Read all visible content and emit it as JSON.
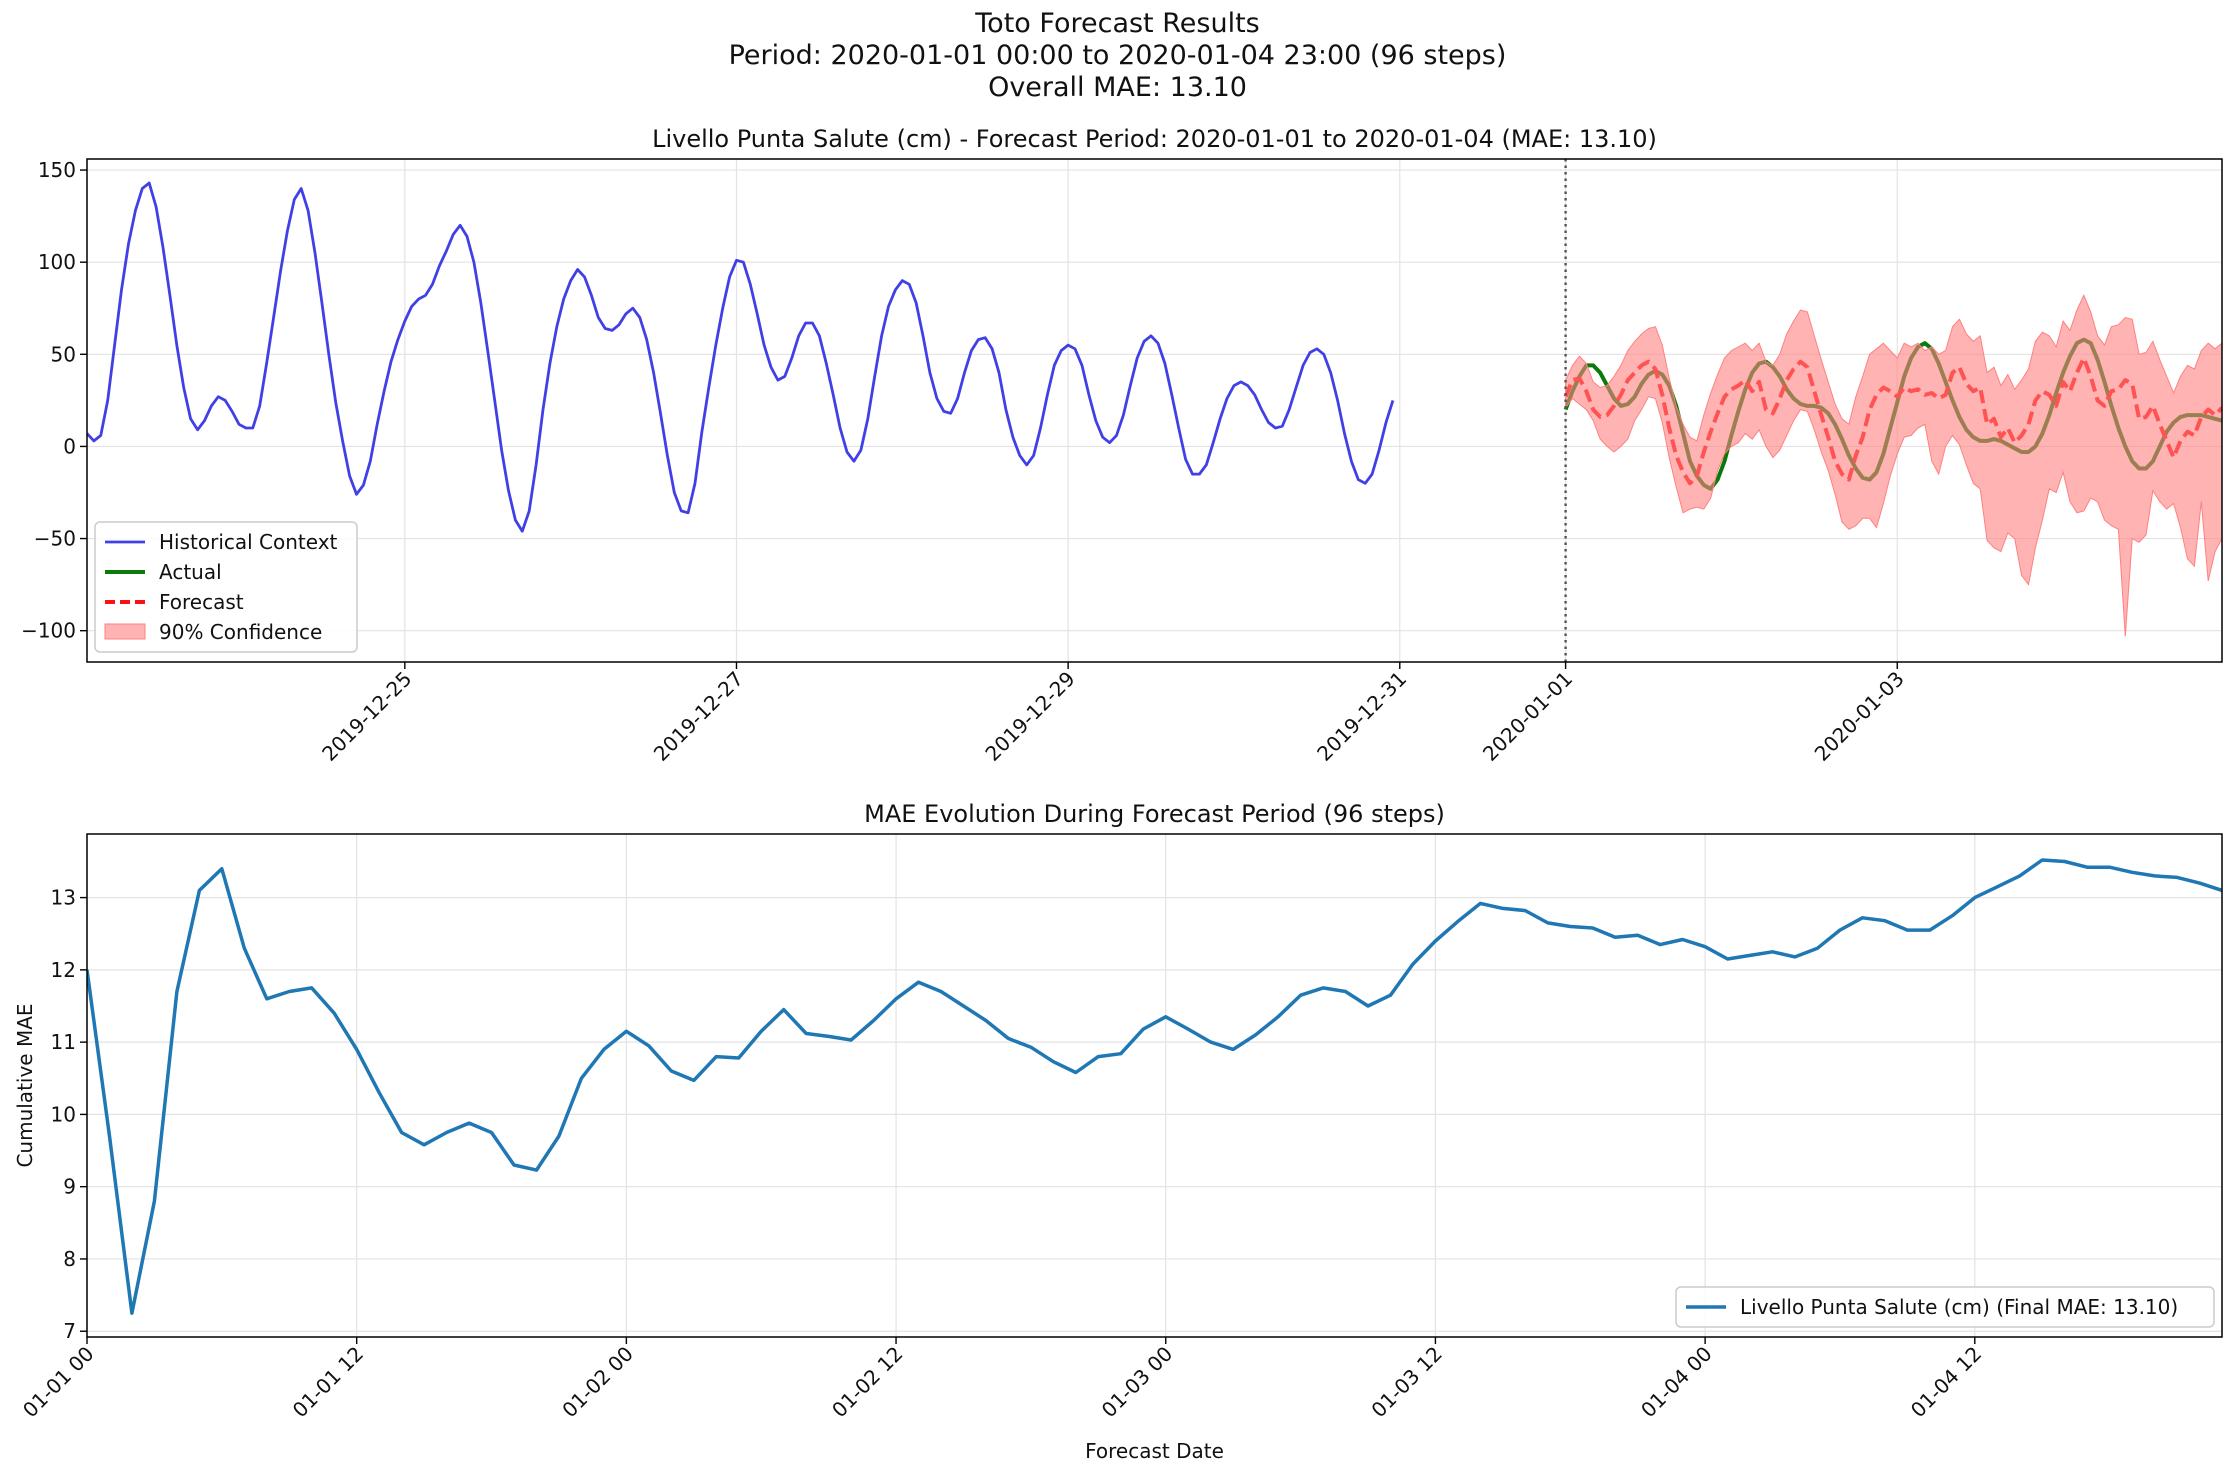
{
  "figure": {
    "title_lines": [
      "Toto Forecast Results",
      "Period: 2020-01-01 00:00 to 2020-01-04 23:00 (96 steps)",
      "Overall MAE: 13.10"
    ]
  },
  "colors": {
    "historical": "#4040e6",
    "actual": "#0a7a0a",
    "forecast": "#ff1010",
    "confidence": "#ff8080",
    "mae_line": "#1f77b4",
    "grid": "#e3e3e3"
  },
  "chart_data": [
    {
      "type": "line",
      "title": "Livello Punta Salute (cm) - Forecast Period: 2020-01-01 to 2020-01-04 (MAE: 13.10)",
      "xlabel": "",
      "ylabel": "",
      "xlim": [
        "2019-12-23 02:00",
        "2020-01-04 23:00"
      ],
      "ylim": [
        -117,
        156
      ],
      "yticks": [
        "150",
        "100",
        "50",
        "0",
        "−50",
        "−100"
      ],
      "xticks": [
        "2019-12-25",
        "2019-12-27",
        "2019-12-29",
        "2019-12-31",
        "2020-01-01",
        "2020-01-03"
      ],
      "forecast_start": "2020-01-01 00:00",
      "grid": true,
      "legend_position": "lower-left",
      "legend": [
        "Historical Context",
        "Actual",
        "Forecast",
        "90% Confidence"
      ],
      "series": [
        {
          "name": "Historical Context",
          "x_start": "2019-12-23 02:00",
          "x_step_hours": 1,
          "values": [
            7,
            3,
            6,
            25,
            55,
            85,
            110,
            128,
            140,
            143,
            130,
            108,
            82,
            55,
            32,
            15,
            9,
            14,
            22,
            27,
            25,
            19,
            12,
            10,
            10,
            22,
            45,
            70,
            95,
            117,
            134,
            140,
            128,
            105,
            78,
            50,
            24,
            3,
            -16,
            -26,
            -21,
            -8,
            12,
            30,
            46,
            58,
            68,
            76,
            80,
            82,
            88,
            98,
            106,
            115,
            120,
            114,
            100,
            78,
            52,
            25,
            -2,
            -24,
            -40,
            -46,
            -35,
            -10,
            20,
            45,
            65,
            80,
            90,
            96,
            92,
            82,
            70,
            64,
            63,
            66,
            72,
            75,
            70,
            58,
            40,
            18,
            -5,
            -25,
            -35,
            -36,
            -20,
            8,
            32,
            55,
            75,
            92,
            101,
            100,
            88,
            72,
            55,
            43,
            36,
            38,
            48,
            60,
            67,
            67,
            60,
            45,
            28,
            10,
            -3,
            -8,
            -2,
            15,
            38,
            60,
            76,
            85,
            90,
            88,
            78,
            60,
            40,
            26,
            19,
            18,
            26,
            40,
            52,
            58,
            59,
            53,
            40,
            20,
            5,
            -5,
            -10,
            -5,
            10,
            28,
            44,
            52,
            55,
            53,
            44,
            28,
            14,
            5,
            2,
            6,
            17,
            33,
            48,
            57,
            60,
            56,
            45,
            28,
            10,
            -7,
            -15,
            -15,
            -10,
            2,
            15,
            26,
            33,
            35,
            33,
            28,
            20,
            13,
            10,
            11,
            20,
            32,
            44,
            51,
            53,
            50,
            40,
            25,
            7,
            -8,
            -18,
            -20,
            -15,
            -2,
            13,
            25
          ]
        },
        {
          "name": "Actual",
          "x_start": "2020-01-01 00:00",
          "x_step_hours": 1,
          "values": [
            20,
            30,
            38,
            44,
            44,
            40,
            33,
            26,
            22,
            23,
            27,
            34,
            39,
            41,
            39,
            33,
            22,
            7,
            -8,
            -16,
            -21,
            -23,
            -18,
            -8,
            6,
            19,
            31,
            40,
            45,
            46,
            43,
            38,
            31,
            26,
            23,
            22,
            22,
            21,
            18,
            12,
            4,
            -5,
            -12,
            -17,
            -18,
            -14,
            -4,
            10,
            24,
            38,
            48,
            54,
            56,
            53,
            45,
            35,
            25,
            16,
            9,
            5,
            3,
            3,
            4,
            3,
            1,
            -1,
            -3,
            -3,
            0,
            7,
            17,
            29,
            40,
            49,
            56,
            58,
            56,
            47,
            35,
            22,
            10,
            0,
            -8,
            -12,
            -12,
            -8,
            0,
            8,
            13,
            16,
            17,
            17,
            17,
            16,
            15,
            14
          ]
        },
        {
          "name": "Forecast",
          "x_start": "2020-01-01 00:00",
          "x_step_hours": 1,
          "values": [
            27,
            36,
            37,
            30,
            20,
            16,
            17,
            22,
            28,
            36,
            40,
            44,
            46,
            42,
            28,
            10,
            -5,
            -14,
            -20,
            -16,
            -3,
            8,
            18,
            27,
            31,
            33,
            36,
            30,
            35,
            20,
            18,
            26,
            36,
            42,
            46,
            43,
            30,
            17,
            5,
            -8,
            -15,
            -18,
            -5,
            5,
            20,
            28,
            32,
            30,
            27,
            32,
            30,
            31,
            28,
            29,
            26,
            28,
            40,
            43,
            34,
            30,
            32,
            12,
            15,
            5,
            10,
            2,
            6,
            12,
            25,
            30,
            28,
            22,
            35,
            30,
            40,
            48,
            38,
            25,
            22,
            30,
            31,
            36,
            34,
            15,
            16,
            22,
            12,
            3,
            -6,
            3,
            8,
            6,
            16,
            20,
            17,
            21
          ]
        },
        {
          "name": "90% Confidence",
          "x_start": "2020-01-01 00:00",
          "x_step_hours": 1,
          "lower": [
            21,
            26,
            23,
            20,
            14,
            4,
            0,
            -3,
            0,
            4,
            14,
            20,
            27,
            26,
            13,
            -6,
            -22,
            -36,
            -34,
            -33,
            -34,
            -28,
            -13,
            -4,
            0,
            2,
            7,
            4,
            9,
            0,
            -6,
            -2,
            6,
            14,
            20,
            19,
            9,
            -3,
            -13,
            -26,
            -41,
            -45,
            -43,
            -39,
            -39,
            -44,
            -31,
            -16,
            -4,
            5,
            6,
            10,
            12,
            -8,
            -15,
            0,
            6,
            1,
            -10,
            -20,
            -23,
            -51,
            -55,
            -57,
            -47,
            -50,
            -70,
            -75,
            -55,
            -40,
            -23,
            -25,
            -14,
            -30,
            -36,
            -35,
            -28,
            -30,
            -40,
            -43,
            -45,
            -103,
            -50,
            -52,
            -48,
            -24,
            -30,
            -34,
            -31,
            -44,
            -61,
            -65,
            -30,
            -73,
            -57,
            -50
          ],
          "upper": [
            36,
            44,
            49,
            45,
            35,
            32,
            33,
            38,
            44,
            52,
            57,
            61,
            64,
            65,
            55,
            37,
            22,
            12,
            5,
            3,
            17,
            29,
            39,
            48,
            52,
            54,
            56,
            52,
            56,
            46,
            44,
            50,
            61,
            68,
            74,
            73,
            60,
            47,
            35,
            23,
            15,
            12,
            27,
            38,
            50,
            53,
            56,
            52,
            48,
            56,
            54,
            56,
            52,
            54,
            50,
            52,
            65,
            69,
            61,
            57,
            60,
            40,
            43,
            33,
            39,
            31,
            36,
            42,
            57,
            62,
            60,
            54,
            68,
            63,
            74,
            82,
            73,
            60,
            55,
            65,
            66,
            70,
            69,
            50,
            51,
            57,
            47,
            38,
            29,
            38,
            44,
            42,
            52,
            56,
            53,
            56
          ]
        }
      ]
    },
    {
      "type": "line",
      "title": "MAE Evolution During Forecast Period (96 steps)",
      "xlabel": "Forecast Date",
      "ylabel": "Cumulative MAE",
      "xlim": [
        "2020-01-01 00:00",
        "2020-01-04 23:00"
      ],
      "ylim": [
        6.92,
        13.88
      ],
      "yticks": [
        "13",
        "12",
        "11",
        "10",
        "9",
        "8",
        "7"
      ],
      "xticks": [
        "01-01 00",
        "01-01 12",
        "01-02 00",
        "01-02 12",
        "01-03 00",
        "01-03 12",
        "01-04 00",
        "01-04 12"
      ],
      "grid": true,
      "legend_position": "lower-right",
      "legend": [
        "Livello Punta Salute (cm) (Final MAE: 13.10)"
      ],
      "series": [
        {
          "name": "Livello Punta Salute (cm) (Final MAE: 13.10)",
          "x_start": "2020-01-01 00:00",
          "x_step_hours": 1,
          "values": [
            12.0,
            9.7,
            7.25,
            8.8,
            11.7,
            13.1,
            13.4,
            12.3,
            11.6,
            11.7,
            11.75,
            11.4,
            10.9,
            10.3,
            9.75,
            9.58,
            9.75,
            9.88,
            9.75,
            9.3,
            9.23,
            9.7,
            10.5,
            10.9,
            11.15,
            10.95,
            10.6,
            10.47,
            10.8,
            10.78,
            11.15,
            11.45,
            11.12,
            11.08,
            11.03,
            11.3,
            11.6,
            11.83,
            11.7,
            11.5,
            11.3,
            11.05,
            10.93,
            10.73,
            10.58,
            10.8,
            10.84,
            11.18,
            11.35,
            11.18,
            11.0,
            10.9,
            11.1,
            11.35,
            11.65,
            11.75,
            11.7,
            11.5,
            11.65,
            12.08,
            12.4,
            12.67,
            12.92,
            12.85,
            12.82,
            12.65,
            12.6,
            12.58,
            12.45,
            12.48,
            12.35,
            12.42,
            12.32,
            12.15,
            12.2,
            12.25,
            12.18,
            12.3,
            12.55,
            12.72,
            12.68,
            12.55,
            12.55,
            12.75,
            13.0,
            13.15,
            13.3,
            13.52,
            13.5,
            13.42,
            13.42,
            13.35,
            13.3,
            13.28,
            13.2,
            13.1
          ]
        }
      ]
    }
  ]
}
